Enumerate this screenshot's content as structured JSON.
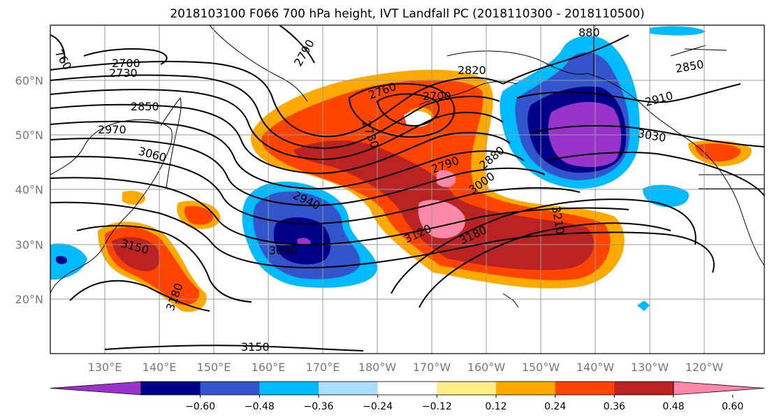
{
  "title": "2018103100 F066 700 hPa height, IVT Landfall PC (2018110300 - 2018110500)",
  "map": {
    "lon_range": [
      120,
      251
    ],
    "lat_range": [
      10,
      70
    ],
    "lon_labels": [
      "130°E",
      "140°E",
      "150°E",
      "160°E",
      "170°E",
      "180°W",
      "170°W",
      "160°W",
      "150°W",
      "140°W",
      "130°W",
      "120°W"
    ],
    "lat_labels": [
      "20°N",
      "30°N",
      "40°N",
      "50°N",
      "60°N"
    ],
    "gridlines": true
  },
  "height_contour_labels": [
    "760",
    "2700",
    "2730",
    "2790",
    "880",
    "2820",
    "2850",
    "2760",
    "2700",
    "2910",
    "2850",
    "2970",
    "3060",
    "2730",
    "3030",
    "2790",
    "2880",
    "3000",
    "2940",
    "3210",
    "3120",
    "3180",
    "3090",
    "3150",
    "3180",
    "3150"
  ],
  "colorbar": {
    "colors": [
      "#9933cc",
      "#000088",
      "#3355cc",
      "#00bbff",
      "#aaddff",
      "#ffffff",
      "#ffee88",
      "#ffaa00",
      "#ff4400",
      "#bb2222",
      "#ff88aa"
    ],
    "tick_labels": [
      "−0.60",
      "−0.48",
      "−0.36",
      "−0.24",
      "−0.12",
      "0.12",
      "0.24",
      "0.36",
      "0.48",
      "0.60"
    ],
    "extend": "both"
  }
}
